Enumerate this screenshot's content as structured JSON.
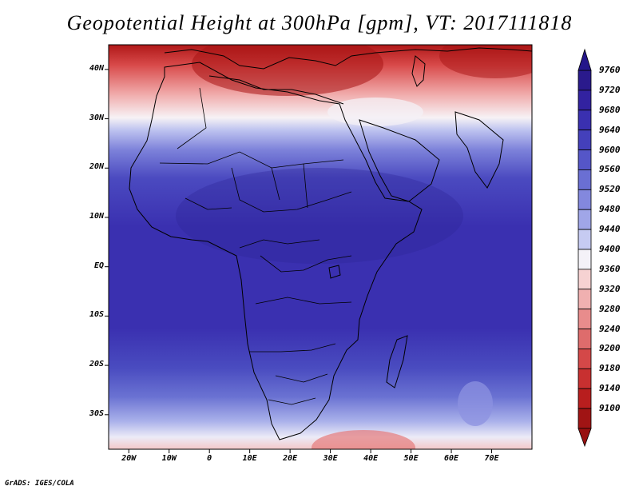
{
  "title": "Geopotential Height at 300hPa [gpm], VT: 2017111818",
  "credit": "GrADS: IGES/COLA",
  "map": {
    "region": "Africa",
    "lon_range": [
      -25,
      80
    ],
    "lat_range": [
      -37,
      45
    ],
    "lat_labels": [
      "40N",
      "30N",
      "20N",
      "10N",
      "EQ",
      "10S",
      "20S",
      "30S"
    ],
    "lat_values": [
      40,
      30,
      20,
      10,
      0,
      -10,
      -20,
      -30
    ],
    "lon_labels": [
      "20W",
      "10W",
      "0",
      "10E",
      "20E",
      "30E",
      "40E",
      "50E",
      "60E",
      "70E"
    ],
    "lon_values": [
      -20,
      -10,
      0,
      10,
      20,
      30,
      40,
      50,
      60,
      70
    ]
  },
  "colorbar": {
    "labels": [
      "9760",
      "9720",
      "9680",
      "9640",
      "9600",
      "9560",
      "9520",
      "9480",
      "9440",
      "9400",
      "9360",
      "9320",
      "9280",
      "9240",
      "9200",
      "9180",
      "9140",
      "9100"
    ],
    "colors": [
      "#2a1a8c",
      "#3222a0",
      "#3a30b0",
      "#4440bb",
      "#5556c8",
      "#6a6fd3",
      "#8388de",
      "#a0a6e8",
      "#c6cbf2",
      "#f4f2f8",
      "#f6d2d2",
      "#f0b0b0",
      "#e88c8c",
      "#de6c6c",
      "#d44848",
      "#c83030",
      "#b81e1e",
      "#a01414"
    ]
  }
}
